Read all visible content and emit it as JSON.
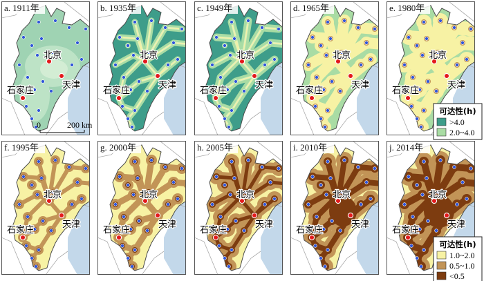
{
  "colors": {
    "sea": "#c3d8ea",
    "land_outside": "#ffffff",
    "outside_border": "#a9a9a9",
    "boundary": "#4a4a4a",
    "node": "#2f55d9",
    "city": "#e31a1c",
    "class_gt4": "#3e9d8a",
    "class_2to4": "#a9dca4",
    "class_1to2": "#f7f2a4",
    "class_05to1": "#c29457",
    "class_lt05": "#7d3c10",
    "panel_a_base": "#9fd3b3",
    "panel_a_inner": "#bde3c6",
    "panel_a_core": "#d3edd4"
  },
  "panels": [
    {
      "id": "a",
      "label": "a. 1911年"
    },
    {
      "id": "b",
      "label": "b. 1935年"
    },
    {
      "id": "c",
      "label": "c. 1949年"
    },
    {
      "id": "d",
      "label": "d. 1965年"
    },
    {
      "id": "e",
      "label": "e. 1980年"
    },
    {
      "id": "f",
      "label": "f. 1995年"
    },
    {
      "id": "g",
      "label": "g. 2000年"
    },
    {
      "id": "h",
      "label": "h. 2005年"
    },
    {
      "id": "i",
      "label": "i. 2010年"
    },
    {
      "id": "j",
      "label": "j. 2014年"
    }
  ],
  "cities": {
    "beijing": "北京",
    "tianjin": "天津",
    "shijiazhuang": "石家庄"
  },
  "scalebar": {
    "zero": "0",
    "distance": "200 km"
  },
  "legend_top": {
    "title": "可达性(h)",
    "items": [
      {
        "label": ">4.0",
        "color": "#3e9d8a"
      },
      {
        "label": "2.0~4.0",
        "color": "#a9dca4"
      }
    ]
  },
  "legend_bottom": {
    "title": "可达性(h)",
    "items": [
      {
        "label": "1.0~2.0",
        "color": "#f7f2a4"
      },
      {
        "label": "0.5~1.0",
        "color": "#c29457"
      },
      {
        "label": "<0.5",
        "color": "#7d3c10"
      }
    ]
  }
}
